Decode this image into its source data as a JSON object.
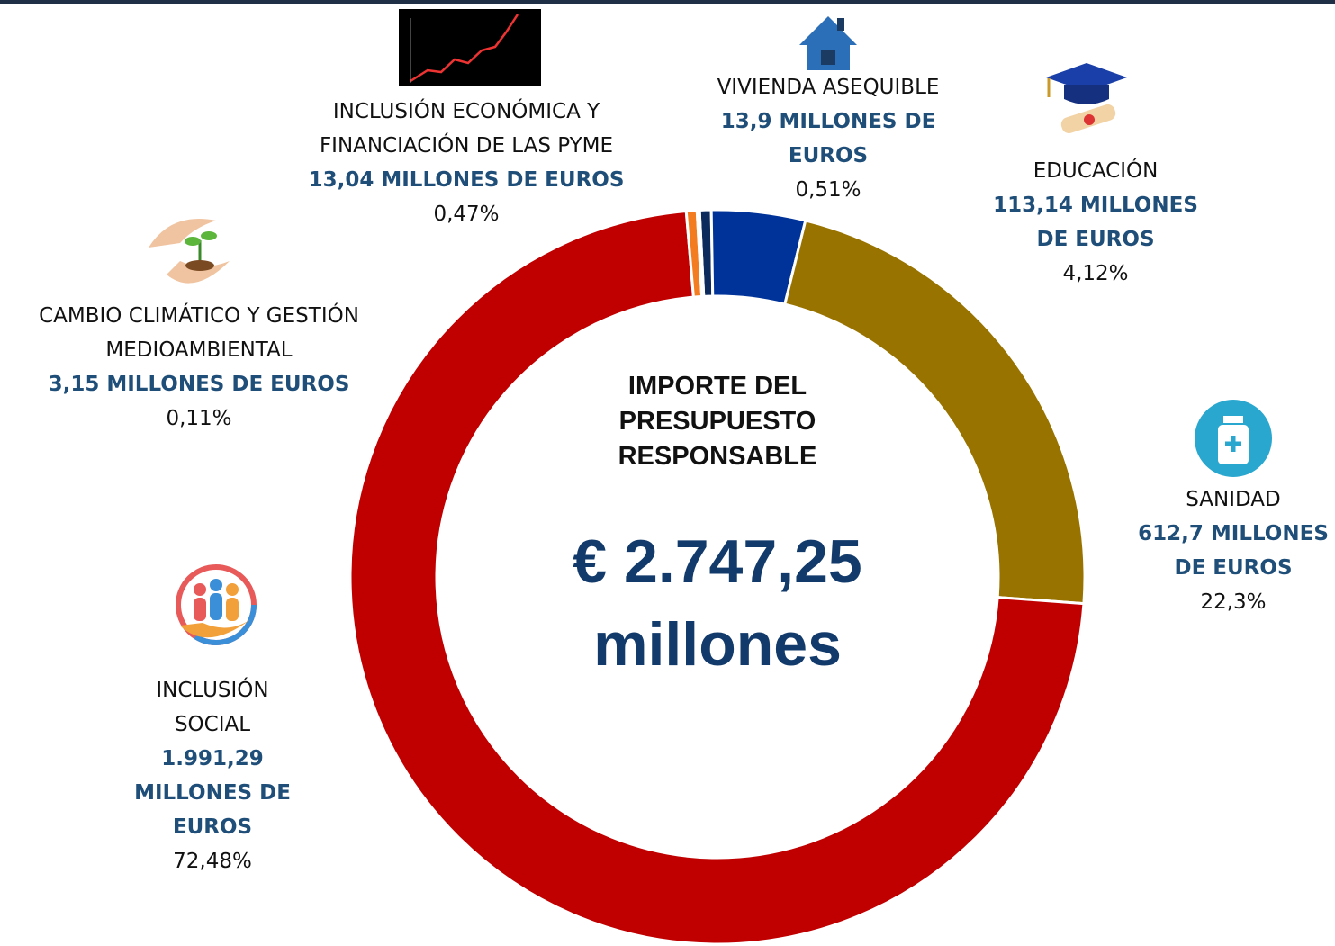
{
  "chart_data": {
    "type": "donut",
    "title": "IMPORTE DEL PRESUPUESTO RESPONSABLE",
    "total_label": "€ 2.747,25 millones",
    "categories": [
      "VIVIENDA ASEQUIBLE",
      "EDUCACIÓN",
      "SANIDAD",
      "INCLUSIÓN SOCIAL",
      "INCLUSIÓN ECONÓMICA Y FINANCIACIÓN DE LAS PYME",
      "CAMBIO CLIMÁTICO Y GESTIÓN MEDIOAMBIENTAL"
    ],
    "amount_labels": [
      "13,9 MILLONES DE EUROS",
      "113,14 MILLONES DE EUROS",
      "612,7 MILLONES DE EUROS",
      "1.991,29 MILLONES DE EUROS",
      "13,04 MILLONES DE EUROS",
      "3,15 MILLONES DE EUROS"
    ],
    "values": [
      0.51,
      4.12,
      22.3,
      72.48,
      0.47,
      0.11
    ],
    "value_labels": [
      "0,51%",
      "4,12%",
      "22,3%",
      "72,48%",
      "0,47%",
      "0,11%"
    ],
    "colors": [
      "#0d2a5c",
      "#003399",
      "#997300",
      "#c00000",
      "#f47c20",
      "#8c8c8c"
    ]
  }
}
